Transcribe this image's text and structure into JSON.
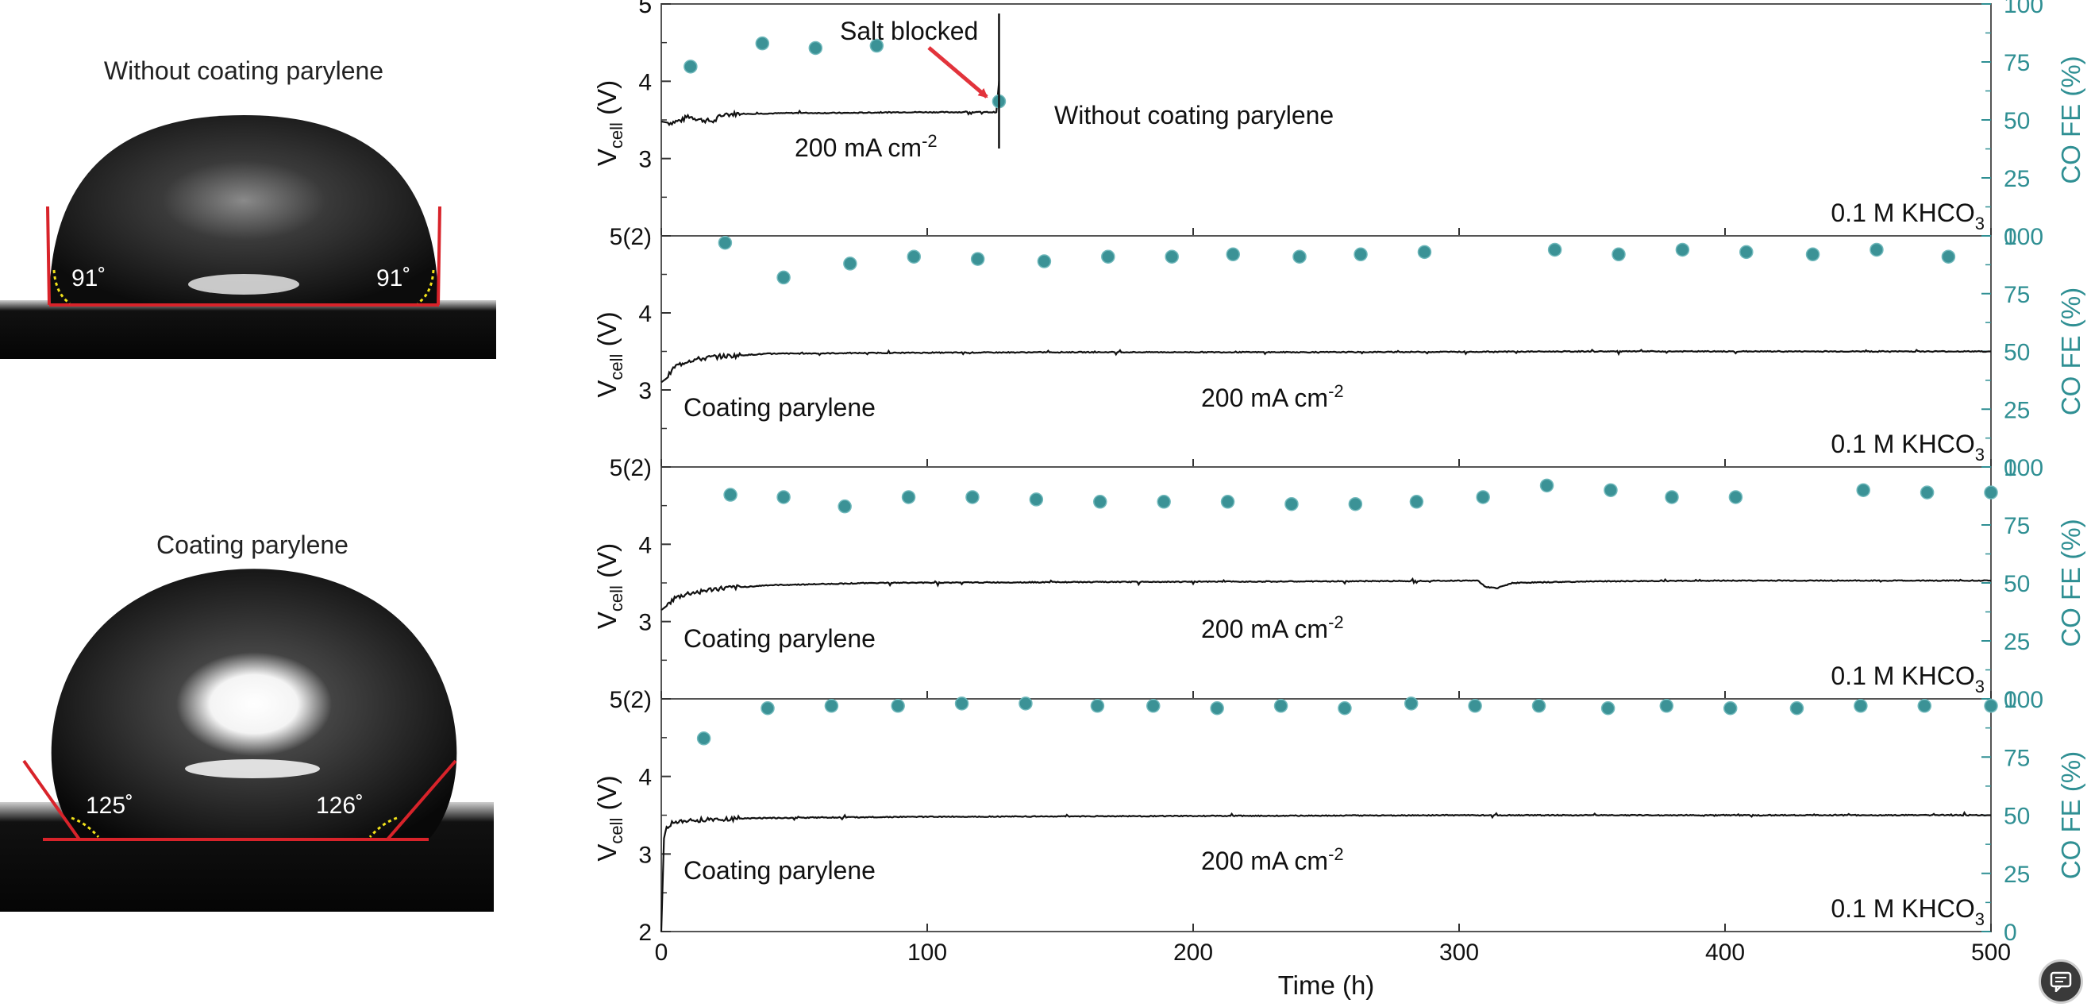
{
  "left_panel": {
    "droplets": [
      {
        "title": "Without coating parylene",
        "left_angle": "91˚",
        "right_angle": "91˚",
        "angle_deg": 91
      },
      {
        "title": "Coating parylene",
        "left_angle": "125˚",
        "right_angle": "126˚",
        "angle_deg": 125
      }
    ]
  },
  "colors": {
    "cell_line": "#111111",
    "fe_marker": "#3b9296",
    "fe_axis": "#2f8f93",
    "tangent_red": "#d8232a",
    "angle_marker": "#f2e21a",
    "salt_arrow": "#e2333b"
  },
  "chart_data": [
    {
      "type": "scatter",
      "title": "",
      "panel_label": "Without coating parylene",
      "current_label": "200 mA cm",
      "current_sup": "-2",
      "electrolyte_label": "0.1 M KHCO",
      "electrolyte_sub": "3",
      "annotation": "Salt blocked",
      "ylabel": "V",
      "ylabel_sub": "cell",
      "ylabel_unit": " (V)",
      "y2label": "CO FE (%)",
      "ylim": [
        2,
        5
      ],
      "y2lim": [
        0,
        100
      ],
      "yticks": [
        "3",
        "4",
        "5"
      ],
      "y2ticks": [
        "0",
        "25",
        "50",
        "75",
        "100"
      ],
      "voltage_series": {
        "x": [
          0,
          3,
          8,
          10,
          15,
          20,
          22,
          25,
          28,
          35,
          50,
          70,
          90,
          110,
          126,
          127
        ],
        "y": [
          3.48,
          3.46,
          3.5,
          3.55,
          3.5,
          3.48,
          3.55,
          3.57,
          3.58,
          3.58,
          3.59,
          3.59,
          3.6,
          3.6,
          3.6,
          4.0
        ]
      },
      "fe_series": {
        "x": [
          11,
          38,
          58,
          81,
          127
        ],
        "y": [
          73,
          83,
          81,
          82,
          58
        ]
      }
    },
    {
      "type": "scatter",
      "title": "",
      "panel_label": "Coating parylene",
      "current_label": "200 mA cm",
      "current_sup": "-2",
      "electrolyte_label": "0.1 M KHCO",
      "electrolyte_sub": "3",
      "ylabel": "V",
      "ylabel_sub": "cell",
      "ylabel_unit": " (V)",
      "y2label": "CO FE (%)",
      "ylim": [
        2,
        5
      ],
      "y2lim": [
        0,
        100
      ],
      "yticks": [
        "3",
        "4",
        "5(2)"
      ],
      "y2ticks": [
        "0",
        "25",
        "50",
        "75",
        "100"
      ],
      "voltage_series": {
        "x": [
          0,
          2,
          5,
          10,
          20,
          40,
          80,
          150,
          250,
          350,
          450,
          500
        ],
        "y": [
          3.1,
          3.15,
          3.3,
          3.38,
          3.43,
          3.47,
          3.48,
          3.49,
          3.49,
          3.5,
          3.5,
          3.5
        ]
      },
      "fe_series": {
        "x": [
          24,
          46,
          71,
          95,
          119,
          144,
          168,
          192,
          215,
          240,
          263,
          287,
          336,
          360,
          384,
          408,
          433,
          457,
          484
        ],
        "y": [
          97,
          82,
          88,
          91,
          90,
          89,
          91,
          91,
          92,
          91,
          92,
          93,
          94,
          92,
          94,
          93,
          92,
          94,
          91
        ]
      }
    },
    {
      "type": "scatter",
      "title": "",
      "panel_label": "Coating parylene",
      "current_label": "200 mA cm",
      "current_sup": "-2",
      "electrolyte_label": "0.1 M KHCO",
      "electrolyte_sub": "3",
      "ylabel": "V",
      "ylabel_sub": "cell",
      "ylabel_unit": " (V)",
      "y2label": "CO FE (%)",
      "ylim": [
        2,
        5
      ],
      "y2lim": [
        0,
        100
      ],
      "yticks": [
        "3",
        "4",
        "5(2)"
      ],
      "y2ticks": [
        "0",
        "25",
        "50",
        "75",
        "100"
      ],
      "voltage_series": {
        "x": [
          0,
          2,
          5,
          10,
          20,
          40,
          80,
          150,
          250,
          307,
          310,
          314,
          320,
          350,
          400,
          450,
          500
        ],
        "y": [
          3.15,
          3.2,
          3.3,
          3.36,
          3.42,
          3.47,
          3.5,
          3.51,
          3.52,
          3.53,
          3.45,
          3.43,
          3.5,
          3.52,
          3.53,
          3.53,
          3.53
        ]
      },
      "fe_series": {
        "x": [
          26,
          46,
          69,
          93,
          117,
          141,
          165,
          189,
          213,
          237,
          261,
          284,
          309,
          333,
          357,
          380,
          404,
          452,
          476,
          500
        ],
        "y": [
          88,
          87,
          83,
          87,
          87,
          86,
          85,
          85,
          85,
          84,
          84,
          85,
          87,
          92,
          90,
          87,
          87,
          90,
          89,
          89
        ]
      }
    },
    {
      "type": "scatter",
      "title": "",
      "panel_label": "Coating parylene",
      "current_label": "200 mA cm",
      "current_sup": "-2",
      "electrolyte_label": "0.1 M KHCO",
      "electrolyte_sub": "3",
      "ylabel": "V",
      "ylabel_sub": "cell",
      "ylabel_unit": " (V)",
      "y2label": "CO FE (%)",
      "ylim": [
        2,
        5
      ],
      "y2lim": [
        0,
        100
      ],
      "yticks": [
        "2",
        "3",
        "4",
        "5(2)"
      ],
      "y2ticks": [
        "0",
        "25",
        "50",
        "75",
        "100"
      ],
      "xlabel": "Time (h)",
      "xlim": [
        0,
        500
      ],
      "xticks": [
        "0",
        "100",
        "200",
        "300",
        "400",
        "500"
      ],
      "voltage_series": {
        "x": [
          0,
          1,
          2,
          4,
          8,
          15,
          30,
          60,
          100,
          200,
          300,
          400,
          500
        ],
        "y": [
          2.0,
          3.2,
          3.35,
          3.4,
          3.42,
          3.44,
          3.46,
          3.47,
          3.48,
          3.49,
          3.5,
          3.5,
          3.5
        ]
      },
      "fe_series": {
        "x": [
          16,
          40,
          64,
          89,
          113,
          137,
          164,
          185,
          209,
          233,
          257,
          282,
          306,
          330,
          356,
          378,
          402,
          427,
          451,
          475,
          500
        ],
        "y": [
          83,
          96,
          97,
          97,
          98,
          98,
          97,
          97,
          96,
          97,
          96,
          98,
          97,
          97,
          96,
          97,
          96,
          96,
          97,
          97,
          97
        ]
      }
    }
  ]
}
